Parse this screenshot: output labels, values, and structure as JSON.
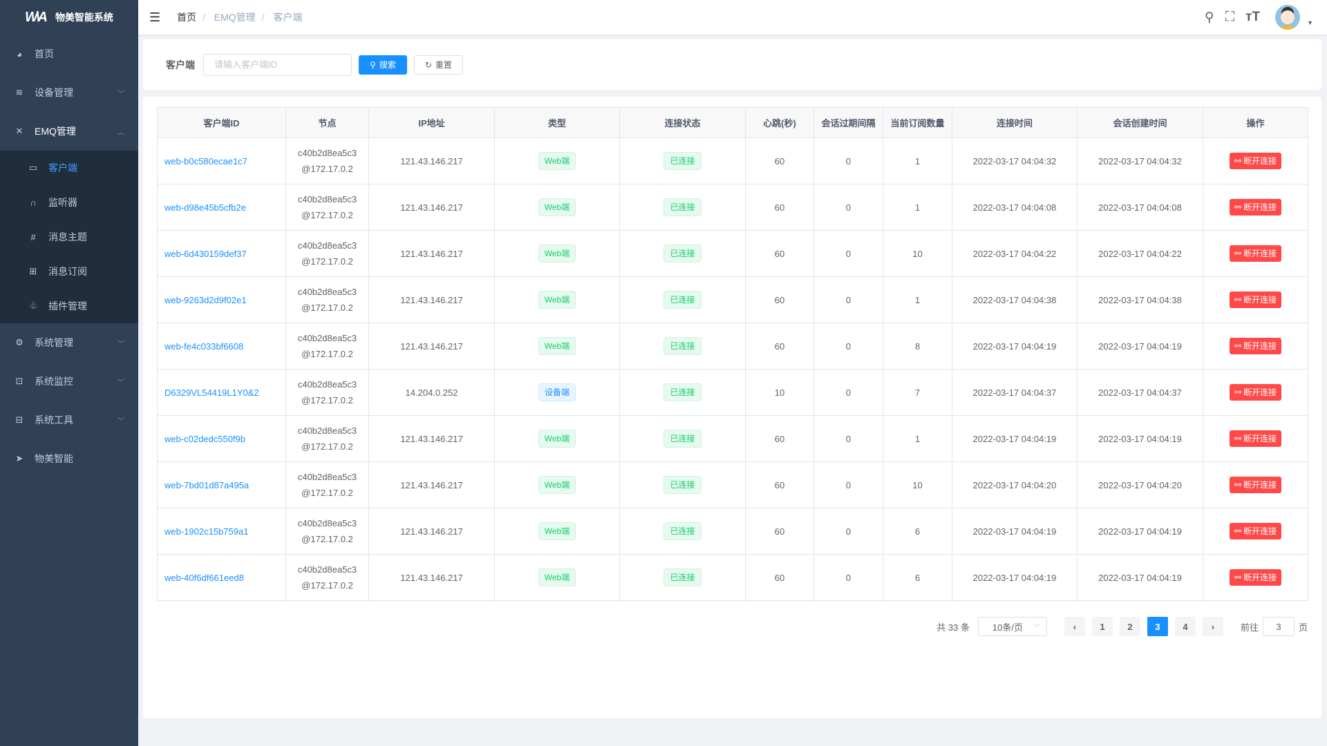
{
  "app": {
    "title": "物美智能系统",
    "logo_text": "WM"
  },
  "sidebar": {
    "items": [
      {
        "label": "首页",
        "icon": "dashboard-icon"
      },
      {
        "label": "设备管理",
        "icon": "layers-icon"
      },
      {
        "label": "EMQ管理",
        "icon": "network-icon"
      },
      {
        "label": "系统管理",
        "icon": "gear-icon"
      },
      {
        "label": "系统监控",
        "icon": "monitor-icon"
      },
      {
        "label": "系统工具",
        "icon": "toolbox-icon"
      },
      {
        "label": "物美智能",
        "icon": "paper-plane-icon"
      }
    ],
    "submenu": [
      {
        "label": "客户端"
      },
      {
        "label": "监听器"
      },
      {
        "label": "消息主题"
      },
      {
        "label": "消息订阅"
      },
      {
        "label": "插件管理"
      }
    ]
  },
  "breadcrumb": [
    "首页",
    "EMQ管理",
    "客户端"
  ],
  "search": {
    "label": "客户端",
    "placeholder": "请输入客户端ID",
    "search_btn": "搜索",
    "reset_btn": "重置"
  },
  "table": {
    "headers": [
      "客户端ID",
      "节点",
      "IP地址",
      "类型",
      "连接状态",
      "心跳(秒)",
      "会话过期间隔",
      "当前订阅数量",
      "连接时间",
      "会话创建时间",
      "操作"
    ],
    "action_label": "断开连接",
    "rows": [
      {
        "id": "web-b0c580ecae1c7",
        "node1": "c40b2d8ea5c3",
        "node2": "@172.17.0.2",
        "ip": "121.43.146.217",
        "type": "Web端",
        "status": "已连接",
        "keepalive": "60",
        "expiry": "0",
        "subs": "1",
        "conn": "2022-03-17 04:04:32",
        "created": "2022-03-17 04:04:32"
      },
      {
        "id": "web-d98e45b5cfb2e",
        "node1": "c40b2d8ea5c3",
        "node2": "@172.17.0.2",
        "ip": "121.43.146.217",
        "type": "Web端",
        "status": "已连接",
        "keepalive": "60",
        "expiry": "0",
        "subs": "1",
        "conn": "2022-03-17 04:04:08",
        "created": "2022-03-17 04:04:08"
      },
      {
        "id": "web-6d430159def37",
        "node1": "c40b2d8ea5c3",
        "node2": "@172.17.0.2",
        "ip": "121.43.146.217",
        "type": "Web端",
        "status": "已连接",
        "keepalive": "60",
        "expiry": "0",
        "subs": "10",
        "conn": "2022-03-17 04:04:22",
        "created": "2022-03-17 04:04:22"
      },
      {
        "id": "web-9263d2d9f02e1",
        "node1": "c40b2d8ea5c3",
        "node2": "@172.17.0.2",
        "ip": "121.43.146.217",
        "type": "Web端",
        "status": "已连接",
        "keepalive": "60",
        "expiry": "0",
        "subs": "1",
        "conn": "2022-03-17 04:04:38",
        "created": "2022-03-17 04:04:38"
      },
      {
        "id": "web-fe4c033bf6608",
        "node1": "c40b2d8ea5c3",
        "node2": "@172.17.0.2",
        "ip": "121.43.146.217",
        "type": "Web端",
        "status": "已连接",
        "keepalive": "60",
        "expiry": "0",
        "subs": "8",
        "conn": "2022-03-17 04:04:19",
        "created": "2022-03-17 04:04:19"
      },
      {
        "id": "D6329VL54419L1Y0&2",
        "node1": "c40b2d8ea5c3",
        "node2": "@172.17.0.2",
        "ip": "14.204.0.252",
        "type": "设备端",
        "status": "已连接",
        "keepalive": "10",
        "expiry": "0",
        "subs": "7",
        "conn": "2022-03-17 04:04:37",
        "created": "2022-03-17 04:04:37"
      },
      {
        "id": "web-c02dedc550f9b",
        "node1": "c40b2d8ea5c3",
        "node2": "@172.17.0.2",
        "ip": "121.43.146.217",
        "type": "Web端",
        "status": "已连接",
        "keepalive": "60",
        "expiry": "0",
        "subs": "1",
        "conn": "2022-03-17 04:04:19",
        "created": "2022-03-17 04:04:19"
      },
      {
        "id": "web-7bd01d87a495a",
        "node1": "c40b2d8ea5c3",
        "node2": "@172.17.0.2",
        "ip": "121.43.146.217",
        "type": "Web端",
        "status": "已连接",
        "keepalive": "60",
        "expiry": "0",
        "subs": "10",
        "conn": "2022-03-17 04:04:20",
        "created": "2022-03-17 04:04:20"
      },
      {
        "id": "web-1902c15b759a1",
        "node1": "c40b2d8ea5c3",
        "node2": "@172.17.0.2",
        "ip": "121.43.146.217",
        "type": "Web端",
        "status": "已连接",
        "keepalive": "60",
        "expiry": "0",
        "subs": "6",
        "conn": "2022-03-17 04:04:19",
        "created": "2022-03-17 04:04:19"
      },
      {
        "id": "web-40f6df661eed8",
        "node1": "c40b2d8ea5c3",
        "node2": "@172.17.0.2",
        "ip": "121.43.146.217",
        "type": "Web端",
        "status": "已连接",
        "keepalive": "60",
        "expiry": "0",
        "subs": "6",
        "conn": "2022-03-17 04:04:19",
        "created": "2022-03-17 04:04:19"
      }
    ]
  },
  "pagination": {
    "total": "共 33 条",
    "page_size": "10条/页",
    "pages": [
      "1",
      "2",
      "3",
      "4"
    ],
    "current": "3",
    "goto_prefix": "前往",
    "goto_value": "3",
    "goto_suffix": "页"
  },
  "colors": {
    "sidebar": "#304156",
    "submenu": "#1f2d3d",
    "primary": "#1890ff",
    "danger": "#ff4949",
    "success": "#13ce66"
  }
}
